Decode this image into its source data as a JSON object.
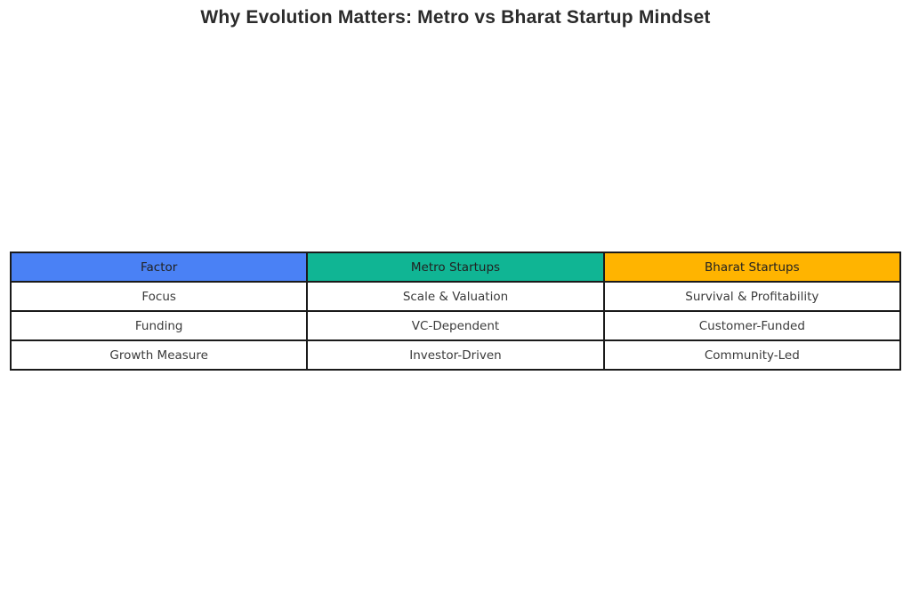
{
  "title": "Why Evolution Matters: Metro vs Bharat Startup Mindset",
  "colors": {
    "factor_header": "#4a81f5",
    "metro_header": "#10b594",
    "bharat_header": "#ffb400",
    "border": "#1a1a1a",
    "cell_text": "#3a3a3a",
    "title_text": "#2b2b2b",
    "background": "#ffffff"
  },
  "chart_data": {
    "type": "table",
    "title": "Why Evolution Matters: Metro vs Bharat Startup Mindset",
    "columns": [
      "Factor",
      "Metro Startups",
      "Bharat Startups"
    ],
    "header_colors": [
      "#4a81f5",
      "#10b594",
      "#ffb400"
    ],
    "rows": [
      [
        "Focus",
        "Scale & Valuation",
        "Survival & Profitability"
      ],
      [
        "Funding",
        "VC-Dependent",
        "Customer-Funded"
      ],
      [
        "Growth Measure",
        "Investor-Driven",
        "Community-Led"
      ]
    ]
  }
}
